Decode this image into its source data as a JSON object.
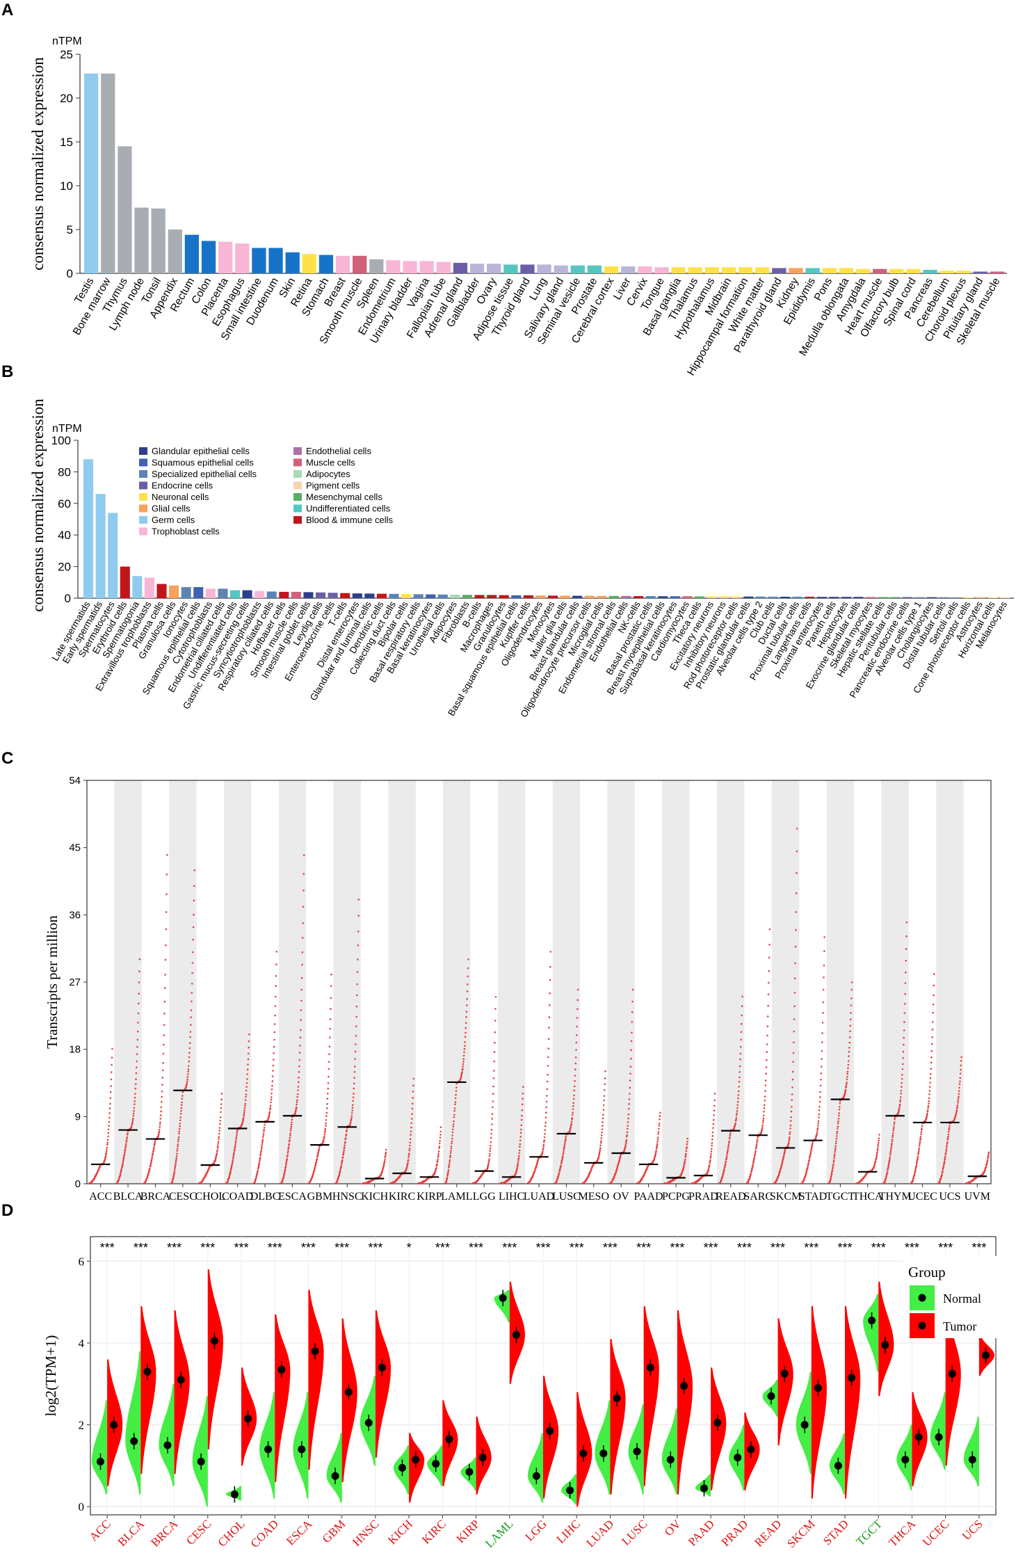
{
  "panel_labels": [
    "A",
    "B",
    "C",
    "D"
  ],
  "colors": {
    "testis": "#8ecbef",
    "grey": "#a7adb3",
    "blue": "#1773c8",
    "pink": "#f7b6d6",
    "green": "#78c38f",
    "yellow": "#ffe24a",
    "lavender": "#b8b5d9",
    "purple": "#6b5ea6",
    "mauve": "#b06fa6",
    "red_pink": "#d1607a",
    "teal": "#55c6c0",
    "apricot": "#f8d3b0",
    "orange": "#f6a25b",
    "darkred": "#c0161a",
    "grid_band": "#ebebeb",
    "tumor": "#ff0000",
    "normal": "#44ee44",
    "scatter": "#e84040"
  },
  "chart_data": [
    {
      "id": "A",
      "type": "bar",
      "unit_label": "nTPM",
      "ylabel": "consensus normalized expression",
      "ylim": [
        0,
        25
      ],
      "yticks": [
        0,
        5,
        10,
        15,
        20,
        25
      ],
      "categories": [
        "Testis",
        "Bone marrow",
        "Thymus",
        "Lymph node",
        "Tonsil",
        "Appendix",
        "Rectum",
        "Colon",
        "Placenta",
        "Esophagus",
        "Small intestine",
        "Duodenum",
        "Skin",
        "Retina",
        "Stomach",
        "Breast",
        "Smooth muscle",
        "Spleen",
        "Endometrium",
        "Urinary bladder",
        "Vagina",
        "Fallopian tube",
        "Adrenal gland",
        "Gallbladder",
        "Ovary",
        "Adipose tissue",
        "Thyroid gland",
        "Lung",
        "Salivary gland",
        "Seminal vesicle",
        "Prostate",
        "Cerebral cortex",
        "Liver",
        "Cervix",
        "Tongue",
        "Basal ganglia",
        "Thalamus",
        "Hypothalamus",
        "Midbrain",
        "Hippocampal formation",
        "White matter",
        "Parathyroid gland",
        "Kidney",
        "Epididymis",
        "Pons",
        "Medulla oblongata",
        "Amygdala",
        "Heart muscle",
        "Olfactory bulb",
        "Spinal cord",
        "Pancreas",
        "Cerebellum",
        "Choroid plexus",
        "Pituitary gland",
        "Skeletal muscle"
      ],
      "values": [
        22.8,
        22.8,
        14.5,
        7.5,
        7.4,
        5.0,
        4.4,
        3.7,
        3.6,
        3.4,
        2.9,
        2.9,
        2.4,
        2.2,
        2.1,
        2.0,
        2.0,
        1.6,
        1.5,
        1.4,
        1.4,
        1.3,
        1.2,
        1.1,
        1.1,
        1.0,
        1.0,
        1.0,
        0.9,
        0.9,
        0.9,
        0.8,
        0.8,
        0.8,
        0.7,
        0.7,
        0.7,
        0.7,
        0.7,
        0.7,
        0.7,
        0.6,
        0.6,
        0.6,
        0.6,
        0.6,
        0.5,
        0.5,
        0.5,
        0.5,
        0.4,
        0.3,
        0.3,
        0.2,
        0.2
      ],
      "bar_colors": [
        "testis",
        "grey",
        "grey",
        "grey",
        "grey",
        "grey",
        "blue",
        "blue",
        "pink",
        "pink",
        "blue",
        "blue",
        "blue",
        "yellow",
        "blue",
        "pink",
        "red_pink",
        "grey",
        "pink",
        "pink",
        "pink",
        "pink",
        "purple",
        "lavender",
        "lavender",
        "teal",
        "purple",
        "lavender",
        "lavender",
        "teal",
        "teal",
        "yellow",
        "lavender",
        "pink",
        "pink",
        "yellow",
        "yellow",
        "yellow",
        "yellow",
        "yellow",
        "yellow",
        "purple",
        "orange",
        "teal",
        "yellow",
        "yellow",
        "yellow",
        "red_pink",
        "yellow",
        "yellow",
        "teal",
        "yellow",
        "yellow",
        "purple",
        "red_pink"
      ]
    },
    {
      "id": "B",
      "type": "bar",
      "unit_label": "nTPM",
      "ylabel": "consensus normalized expression",
      "ylim": [
        0,
        100
      ],
      "yticks": [
        0,
        20,
        40,
        60,
        80,
        100
      ],
      "legend": [
        {
          "label": "Glandular epithelial cells",
          "color": "#2c3f8c"
        },
        {
          "label": "Squamous epithelial cells",
          "color": "#3f62b4"
        },
        {
          "label": "Specialized epithelial cells",
          "color": "#5b84b4"
        },
        {
          "label": "Endocrine cells",
          "color": "#6b5ea6"
        },
        {
          "label": "Neuronal cells",
          "color": "#ffe24a"
        },
        {
          "label": "Glial cells",
          "color": "#f6a25b"
        },
        {
          "label": "Germ cells",
          "color": "#8ecbef"
        },
        {
          "label": "Trophoblast cells",
          "color": "#f7b6d6"
        },
        {
          "label": "Endothelial cells",
          "color": "#b06fa6"
        },
        {
          "label": "Muscle cells",
          "color": "#d1607a"
        },
        {
          "label": "Adipocytes",
          "color": "#a8dab4"
        },
        {
          "label": "Pigment cells",
          "color": "#f8d3b0"
        },
        {
          "label": "Mesenchymal cells",
          "color": "#5aae63"
        },
        {
          "label": "Undifferentiated cells",
          "color": "#55c6c0"
        },
        {
          "label": "Blood & immune cells",
          "color": "#c0161a"
        }
      ],
      "categories": [
        "Late spermatids",
        "Early spermatids",
        "Spermatocytes",
        "Erythroid cells",
        "Spermatogonia",
        "Extravillous trophoblasts",
        "Plasma cells",
        "Granulosa cells",
        "Ionocytes",
        "Squamous epithelial cells",
        "Cytotrophoblasts",
        "Endometrial ciliated cells",
        "Undifferentiated cells",
        "Gastric mucus-secreting cells",
        "Syncytiotrophoblasts",
        "Respiratory ciliated cells",
        "Hofbauer cells",
        "Smooth muscle cells",
        "Intestinal goblet cells",
        "Leydig cells",
        "Enteroendocrine cells",
        "T-cells",
        "Distal enterocytes",
        "Glandular and luminal cells",
        "Dendritic cells",
        "Collecting duct cells",
        "Bipolar cells",
        "Basal respiratory cells",
        "Basal keratinocytes",
        "Urothelial cells",
        "Adipocytes",
        "Fibroblasts",
        "B-cells",
        "Macrophages",
        "Granulocytes",
        "Basal squamous epithelial cells",
        "Kupffer cells",
        "Oligodendrocytes",
        "Monocytes",
        "Muller glia cells",
        "Breast glandular cells",
        "Oligodendrocyte precursor cells",
        "Microglial cells",
        "Endometrial stromal cells",
        "Endothelial cells",
        "NK-cells",
        "Basal prostatic cells",
        "Breast myoepithelial cells",
        "Suprabasal keratinocytes",
        "Cardiomyocytes",
        "Theca cells",
        "Excitatory neurons",
        "Inhibitory neurons",
        "Rod photoreceptor cells",
        "Prostatic glandular cells",
        "Alveolar cells type 2",
        "Club cells",
        "Ductal cells",
        "Proximal tubular cells",
        "Langerhans cells",
        "Proximal enterocytes",
        "Paneth cells",
        "Hepatocytes",
        "Exocrine glandular cells",
        "Skeletal myocytes",
        "Hepatic stellate cells",
        "Peritubular cells",
        "Pancreatic endocrine cells",
        "Alveolar cells type 1",
        "Cholangiocytes",
        "Distal tubular cells",
        "Sertoli cells",
        "Cone photoreceptor cells",
        "Astrocytes",
        "Horizontal cells",
        "Melanocytes"
      ],
      "values": [
        88,
        66,
        54,
        20,
        14,
        13,
        9,
        8,
        7,
        7,
        6,
        6,
        5,
        5,
        4.5,
        4.2,
        4,
        4,
        3.8,
        3.6,
        3.4,
        3.2,
        3,
        2.9,
        2.8,
        2.7,
        2.6,
        2.5,
        2.4,
        2.3,
        2.2,
        2.1,
        2,
        2,
        1.9,
        1.8,
        1.8,
        1.7,
        1.6,
        1.6,
        1.5,
        1.5,
        1.4,
        1.4,
        1.4,
        1.3,
        1.3,
        1.2,
        1.2,
        1.2,
        1.1,
        1.1,
        1.1,
        1,
        1,
        1,
        0.9,
        0.9,
        0.9,
        0.9,
        0.8,
        0.8,
        0.8,
        0.8,
        0.7,
        0.7,
        0.7,
        0.7,
        0.6,
        0.6,
        0.6,
        0.5,
        0.5,
        0.5,
        0.4,
        0.4
      ],
      "bar_colors": [
        "#8ecbef",
        "#8ecbef",
        "#8ecbef",
        "#c0161a",
        "#8ecbef",
        "#f7b6d6",
        "#c0161a",
        "#f6a25b",
        "#5b84b4",
        "#3f62b4",
        "#f7b6d6",
        "#5b84b4",
        "#55c6c0",
        "#2c3f8c",
        "#f7b6d6",
        "#5b84b4",
        "#c0161a",
        "#d1607a",
        "#2c3f8c",
        "#6b5ea6",
        "#6b5ea6",
        "#c0161a",
        "#2c3f8c",
        "#2c3f8c",
        "#c0161a",
        "#5b84b4",
        "#ffe24a",
        "#5b84b4",
        "#3f62b4",
        "#5b84b4",
        "#a8dab4",
        "#5aae63",
        "#c0161a",
        "#c0161a",
        "#c0161a",
        "#3f62b4",
        "#c0161a",
        "#f6a25b",
        "#c0161a",
        "#f6a25b",
        "#2c3f8c",
        "#f6a25b",
        "#f6a25b",
        "#5aae63",
        "#b06fa6",
        "#c0161a",
        "#5b84b4",
        "#2c3f8c",
        "#3f62b4",
        "#d1607a",
        "#5aae63",
        "#ffe24a",
        "#ffe24a",
        "#ffe24a",
        "#2c3f8c",
        "#5b84b4",
        "#5b84b4",
        "#2c3f8c",
        "#5b84b4",
        "#c0161a",
        "#2c3f8c",
        "#2c3f8c",
        "#2c3f8c",
        "#2c3f8c",
        "#d1607a",
        "#5aae63",
        "#5aae63",
        "#6b5ea6",
        "#5b84b4",
        "#2c3f8c",
        "#5b84b4",
        "#5b84b4",
        "#ffe24a",
        "#f6a25b",
        "#ffe24a",
        "#f8d3b0"
      ]
    },
    {
      "id": "C",
      "type": "scatter",
      "ylabel": "Transcripts per million",
      "ylim": [
        0,
        54
      ],
      "yticks": [
        0,
        9,
        18,
        27,
        36,
        45,
        54
      ],
      "categories": [
        "ACC",
        "BLCA",
        "BRCA",
        "CESC",
        "CHOL",
        "COAD",
        "DLBC",
        "ESCA",
        "GBM",
        "HNSC",
        "KICH",
        "KIRC",
        "KIRP",
        "LAML",
        "LGG",
        "LIHC",
        "LUAD",
        "LUSC",
        "MESO",
        "OV",
        "PAAD",
        "PCPG",
        "PRAD",
        "READ",
        "SARC",
        "SKCM",
        "STAD",
        "TGCT",
        "THCA",
        "THYM",
        "UCEC",
        "UCS",
        "UVM"
      ],
      "medians": [
        2.6,
        7.2,
        6.0,
        12.5,
        2.5,
        7.4,
        8.3,
        9.1,
        5.2,
        7.6,
        0.7,
        1.4,
        0.9,
        13.6,
        1.7,
        0.9,
        3.6,
        6.7,
        2.8,
        4.1,
        2.6,
        0.8,
        1.1,
        7.1,
        6.5,
        4.8,
        5.8,
        11.3,
        1.6,
        9.1,
        8.2,
        8.2,
        1.0
      ],
      "maxima": [
        18,
        30,
        44,
        42,
        12,
        20,
        31,
        44,
        28,
        38,
        4.5,
        14,
        7.5,
        30,
        25,
        13,
        31,
        26,
        15,
        26,
        9.5,
        6,
        12,
        25,
        34,
        47.5,
        33,
        27,
        6.5,
        35,
        28,
        17,
        4.2
      ]
    },
    {
      "id": "D",
      "type": "violin",
      "ylabel": "log2(TPM+1)",
      "ylim": [
        -0.2,
        6.6
      ],
      "yticks": [
        0,
        2,
        4,
        6
      ],
      "legend_title": "Group",
      "legend": [
        {
          "label": "Normal",
          "color": "#44ee44"
        },
        {
          "label": "Tumor",
          "color": "#ff0000"
        }
      ],
      "categories": [
        "ACC",
        "BLCA",
        "BRCA",
        "CESC",
        "CHOL",
        "COAD",
        "ESCA",
        "GBM",
        "HNSC",
        "KICH",
        "KIRC",
        "KIRP",
        "LAML",
        "LGG",
        "LIHC",
        "LUAD",
        "LUSC",
        "OV",
        "PAAD",
        "PRAD",
        "READ",
        "SKCM",
        "STAD",
        "TGCT",
        "THCA",
        "UCEC",
        "UCS"
      ],
      "significance": [
        "***",
        "***",
        "***",
        "***",
        "***",
        "***",
        "***",
        "***",
        "***",
        "*",
        "***",
        "***",
        "***",
        "***",
        "***",
        "***",
        "***",
        "***",
        "***",
        "***",
        "***",
        "***",
        "***",
        "***",
        "***",
        "***",
        "***"
      ],
      "label_colors": [
        "red",
        "red",
        "red",
        "red",
        "red",
        "red",
        "red",
        "red",
        "red",
        "red",
        "red",
        "red",
        "green",
        "red",
        "red",
        "red",
        "red",
        "red",
        "red",
        "red",
        "red",
        "red",
        "red",
        "green",
        "red",
        "red",
        "red"
      ],
      "normal_median": [
        1.1,
        1.6,
        1.5,
        1.1,
        0.3,
        1.4,
        1.4,
        0.75,
        2.05,
        0.95,
        1.05,
        0.85,
        5.1,
        0.75,
        0.4,
        1.3,
        1.35,
        1.15,
        0.45,
        1.2,
        2.7,
        2.0,
        1.0,
        4.55,
        1.15,
        1.7,
        1.15
      ],
      "tumor_median": [
        2.0,
        3.3,
        3.1,
        4.05,
        2.15,
        3.35,
        3.8,
        2.8,
        3.4,
        1.15,
        1.65,
        1.2,
        4.2,
        1.85,
        1.3,
        2.65,
        3.4,
        2.95,
        2.05,
        1.4,
        3.25,
        2.9,
        3.15,
        3.95,
        1.7,
        3.25,
        3.7
      ],
      "normal_min": [
        0.3,
        0.3,
        0.5,
        0.0,
        0.15,
        0.2,
        0.2,
        0.1,
        1.0,
        0.3,
        0.5,
        0.4,
        4.5,
        0.1,
        0.05,
        0.3,
        0.3,
        0.3,
        0.25,
        0.4,
        2.2,
        0.8,
        0.3,
        3.3,
        0.4,
        0.9,
        0.5
      ],
      "normal_max": [
        2.6,
        3.8,
        3.0,
        2.7,
        0.5,
        2.8,
        2.8,
        1.8,
        3.2,
        1.5,
        1.5,
        1.2,
        5.3,
        1.8,
        0.8,
        2.6,
        2.5,
        2.4,
        0.8,
        2.0,
        3.1,
        3.3,
        1.8,
        5.2,
        2.0,
        2.8,
        2.2
      ],
      "tumor_min": [
        0.5,
        0.8,
        0.8,
        1.4,
        1.0,
        0.6,
        0.9,
        0.6,
        1.2,
        0.1,
        0.5,
        0.3,
        3.0,
        0.2,
        0.0,
        0.3,
        0.5,
        0.3,
        0.4,
        0.4,
        1.5,
        0.2,
        0.2,
        2.7,
        0.5,
        1.0,
        3.2
      ],
      "tumor_max": [
        3.6,
        4.9,
        4.8,
        5.8,
        3.4,
        4.7,
        5.3,
        4.6,
        4.8,
        1.8,
        2.6,
        2.2,
        5.5,
        3.2,
        2.8,
        4.1,
        4.9,
        4.8,
        3.4,
        2.3,
        4.6,
        4.9,
        4.9,
        5.5,
        2.8,
        5.0,
        4.2
      ]
    }
  ]
}
